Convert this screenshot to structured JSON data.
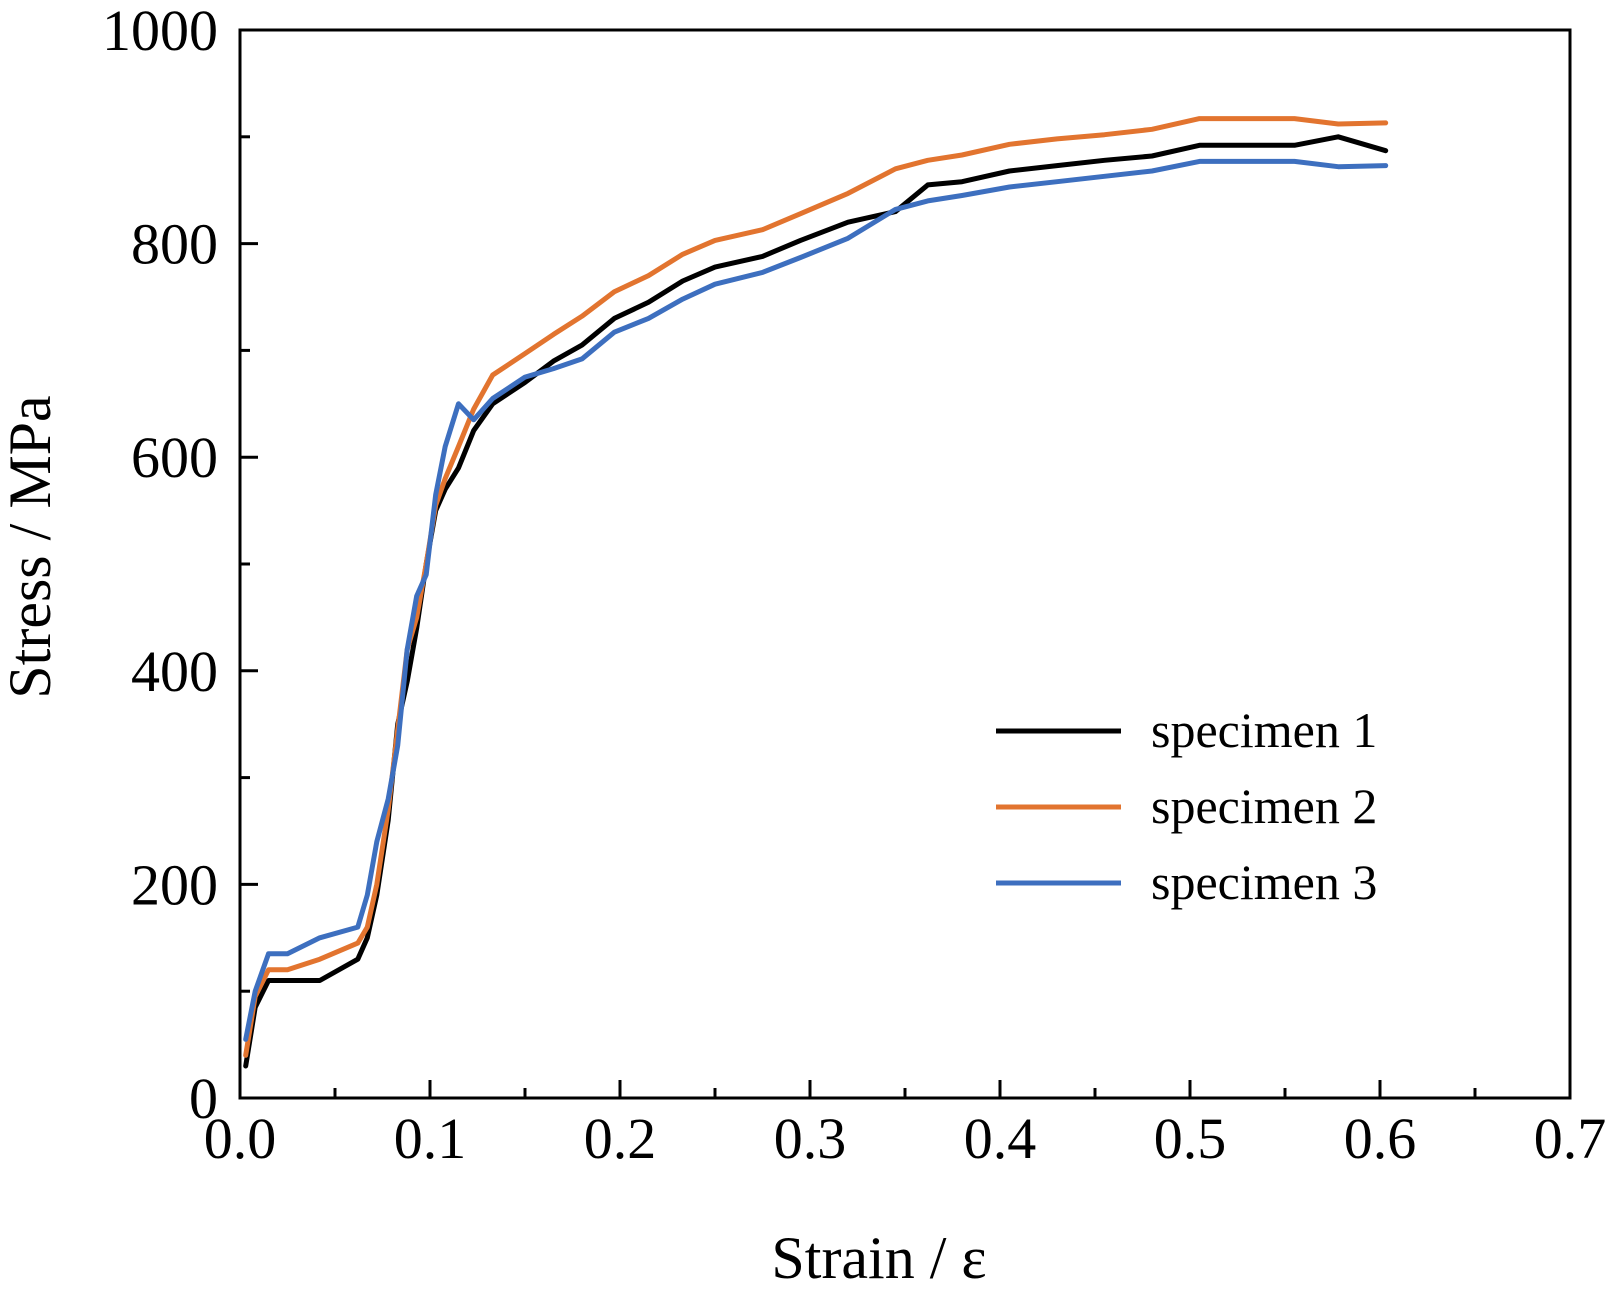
{
  "chart_data": {
    "type": "line",
    "title": "",
    "xlabel": "Strain / ε",
    "ylabel": "Stress / MPa",
    "xlim": [
      0.0,
      0.7
    ],
    "ylim": [
      0,
      1000
    ],
    "x_ticks": [
      0.0,
      0.1,
      0.2,
      0.3,
      0.4,
      0.5,
      0.6,
      0.7
    ],
    "x_tick_labels": [
      "0.0",
      "0.1",
      "0.2",
      "0.3",
      "0.4",
      "0.5",
      "0.6",
      "0.7"
    ],
    "y_ticks": [
      0,
      200,
      400,
      600,
      800,
      1000
    ],
    "y_tick_labels": [
      "0",
      "200",
      "400",
      "600",
      "800",
      "1000"
    ],
    "x_minor_step": 0.05,
    "y_minor_step": 100,
    "grid": false,
    "legend_position": "bottom-right",
    "series": [
      {
        "name": "specimen 1",
        "color": "#000000",
        "x": [
          0.003,
          0.008,
          0.015,
          0.025,
          0.042,
          0.062,
          0.067,
          0.072,
          0.078,
          0.083,
          0.088,
          0.093,
          0.098,
          0.103,
          0.108,
          0.115,
          0.123,
          0.133,
          0.15,
          0.165,
          0.18,
          0.197,
          0.215,
          0.233,
          0.25,
          0.275,
          0.295,
          0.32,
          0.345,
          0.362,
          0.38,
          0.405,
          0.43,
          0.455,
          0.48,
          0.505,
          0.53,
          0.555,
          0.578,
          0.603
        ],
        "y": [
          30,
          85,
          110,
          110,
          110,
          130,
          150,
          190,
          260,
          350,
          390,
          440,
          500,
          550,
          570,
          590,
          625,
          650,
          670,
          690,
          705,
          730,
          745,
          765,
          778,
          788,
          803,
          820,
          830,
          855,
          858,
          868,
          873,
          878,
          882,
          892,
          892,
          892,
          900,
          887
        ]
      },
      {
        "name": "specimen 2",
        "color": "#E2742F",
        "x": [
          0.003,
          0.008,
          0.015,
          0.025,
          0.042,
          0.062,
          0.067,
          0.072,
          0.078,
          0.083,
          0.088,
          0.093,
          0.098,
          0.103,
          0.108,
          0.115,
          0.123,
          0.133,
          0.15,
          0.165,
          0.18,
          0.197,
          0.215,
          0.233,
          0.25,
          0.275,
          0.295,
          0.32,
          0.345,
          0.362,
          0.38,
          0.405,
          0.43,
          0.455,
          0.48,
          0.505,
          0.53,
          0.555,
          0.578,
          0.603
        ],
        "y": [
          40,
          95,
          120,
          120,
          130,
          145,
          160,
          200,
          270,
          345,
          420,
          450,
          500,
          555,
          580,
          610,
          645,
          677,
          697,
          715,
          732,
          755,
          770,
          790,
          803,
          813,
          828,
          847,
          870,
          878,
          883,
          893,
          898,
          902,
          907,
          917,
          917,
          917,
          912,
          913
        ]
      },
      {
        "name": "specimen 3",
        "color": "#3D6FBF",
        "x": [
          0.003,
          0.008,
          0.015,
          0.025,
          0.042,
          0.062,
          0.067,
          0.072,
          0.078,
          0.083,
          0.088,
          0.093,
          0.098,
          0.103,
          0.108,
          0.115,
          0.123,
          0.133,
          0.15,
          0.165,
          0.18,
          0.197,
          0.215,
          0.233,
          0.25,
          0.275,
          0.295,
          0.32,
          0.345,
          0.362,
          0.38,
          0.405,
          0.43,
          0.455,
          0.48,
          0.505,
          0.53,
          0.555,
          0.578,
          0.603
        ],
        "y": [
          55,
          100,
          135,
          135,
          150,
          160,
          190,
          240,
          280,
          330,
          420,
          470,
          490,
          565,
          610,
          650,
          635,
          655,
          675,
          683,
          692,
          717,
          730,
          748,
          762,
          773,
          787,
          805,
          832,
          840,
          845,
          853,
          858,
          863,
          868,
          877,
          877,
          877,
          872,
          873
        ]
      }
    ]
  }
}
